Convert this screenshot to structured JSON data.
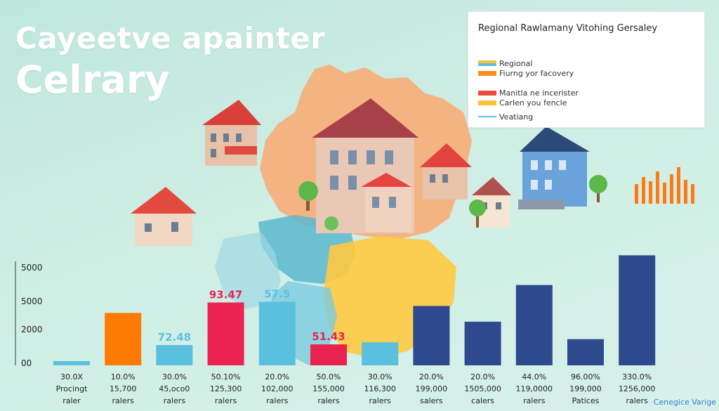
{
  "header": {
    "title_line1": "Cayeetve apainter",
    "title_line2": "Celrary"
  },
  "legend": {
    "title": "Regional Rawlamany Vitohing Gersaley",
    "items": [
      {
        "label": "Regional",
        "color": "#5bc0de",
        "style": "swatch"
      },
      {
        "label": "Fiurng yor facovery",
        "color": "#ff8c1a",
        "style": "swatch"
      },
      {
        "label": "Manitla ne incerister",
        "color": "#e74c3c",
        "style": "swatch"
      },
      {
        "label": "Carlen you fencle",
        "color": "#ffc233",
        "style": "swatch"
      },
      {
        "label": "Veatiang",
        "color": "#5bc0de",
        "style": "line"
      }
    ]
  },
  "footer": {
    "brand": "Cenegice Varige"
  },
  "colors": {
    "orange": "#ff7a00",
    "pink": "#ec2456",
    "sky": "#5bc0de",
    "crimson": "#e8234e",
    "navy": "#2e4a8e"
  },
  "icons": [
    "house-icon",
    "tree-icon",
    "region-map-icon",
    "pie-chart-icon",
    "mini-bar-chart-icon"
  ],
  "chart_data": {
    "type": "bar",
    "y_tick_labels": [
      "5000",
      "5000",
      "2000",
      "00"
    ],
    "ylim": [
      0,
      3500
    ],
    "grid": false,
    "legend_position": "top-right",
    "bars": [
      {
        "value": 120,
        "color": "#5bc0de",
        "pct": "30.0X",
        "count": "Procingt",
        "unit": "raler",
        "highlight": true
      },
      {
        "value": 1500,
        "color": "#ff7a00",
        "pct": "10.0%",
        "count": "15,700",
        "unit": "ralers"
      },
      {
        "value": 580,
        "color": "#5bc0de",
        "pct": "30.0%",
        "count": "45,oco0",
        "unit": "ralers",
        "label": "72.48"
      },
      {
        "value": 1800,
        "color": "#ec2456",
        "pct": "50.10%",
        "count": "125,300",
        "unit": "ralers",
        "label": "93.47"
      },
      {
        "value": 1820,
        "color": "#5bc0de",
        "pct": "20.0%",
        "count": "102,000",
        "unit": "ralers",
        "label": "57.5"
      },
      {
        "value": 600,
        "color": "#e8234e",
        "pct": "50.0%",
        "count": "155,000",
        "unit": "ralers",
        "label": "51.43"
      },
      {
        "value": 660,
        "color": "#5bc0de",
        "pct": "30.0%",
        "count": "116,300",
        "unit": "ralers"
      },
      {
        "value": 1700,
        "color": "#2e4a8e",
        "pct": "20.0%",
        "count": "199,000",
        "unit": "salers"
      },
      {
        "value": 1250,
        "color": "#2e4a8e",
        "pct": "20.0%",
        "count": "1505,000",
        "unit": "calers"
      },
      {
        "value": 2300,
        "color": "#2e4a8e",
        "pct": "44.0%",
        "count": "119,0000",
        "unit": "ralers"
      },
      {
        "value": 750,
        "color": "#2e4a8e",
        "pct": "96.00%",
        "count": "199,000",
        "unit": "Patices"
      },
      {
        "value": 3150,
        "color": "#2e4a8e",
        "pct": "330.0%",
        "count": "1256,000",
        "unit": "ralers"
      }
    ]
  }
}
